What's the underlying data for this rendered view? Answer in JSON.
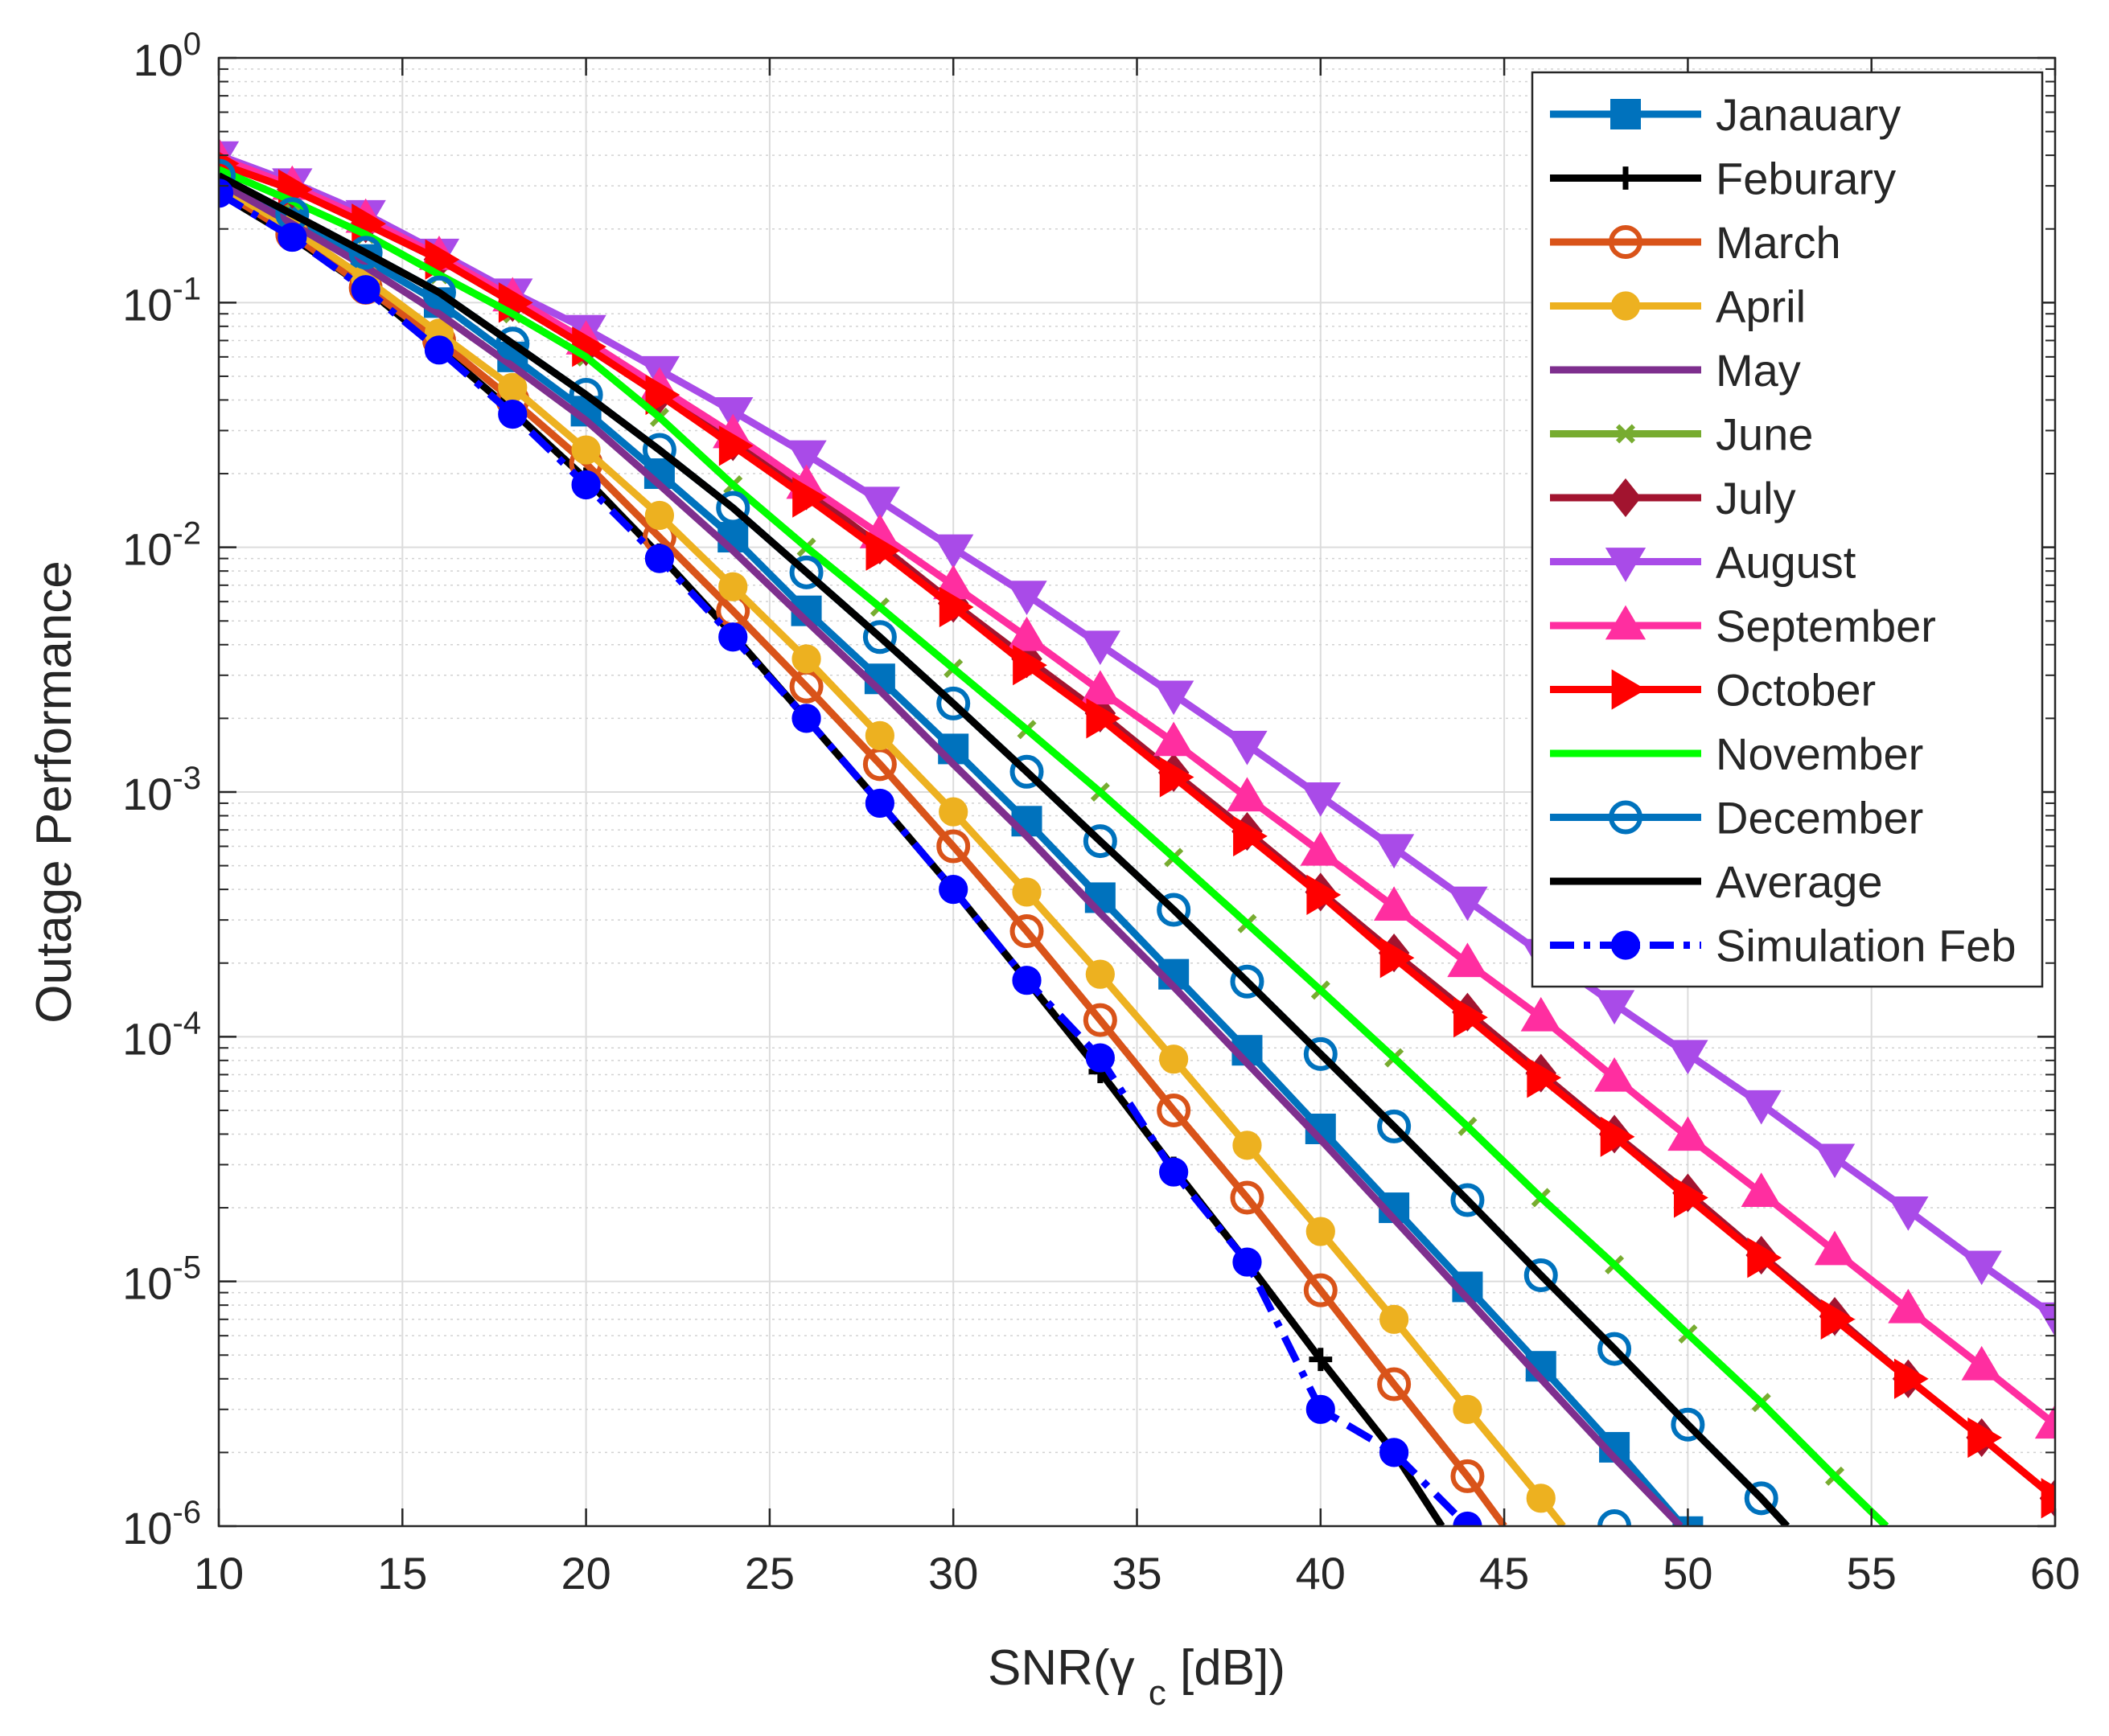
{
  "chart_data": {
    "type": "line",
    "xlabel": "SNR(γ_c [dB])",
    "ylabel": "Outage Performance",
    "xlim": [
      10,
      60
    ],
    "ylim_log10": [
      -6,
      0
    ],
    "yscale": "log",
    "grid": true,
    "minor_grid": true,
    "legend_position": "top-right",
    "x_ticks": [
      10,
      15,
      20,
      25,
      30,
      35,
      40,
      45,
      50,
      55,
      60
    ],
    "y_ticks": [
      {
        "base": "10",
        "exp": "0",
        "value": 1
      },
      {
        "base": "10",
        "exp": "-1",
        "value": 0.1
      },
      {
        "base": "10",
        "exp": "-2",
        "value": 0.01
      },
      {
        "base": "10",
        "exp": "-3",
        "value": 0.001
      },
      {
        "base": "10",
        "exp": "-4",
        "value": 0.0001
      },
      {
        "base": "10",
        "exp": "-5",
        "value": 1e-05
      },
      {
        "base": "10",
        "exp": "-6",
        "value": 1e-06
      }
    ],
    "series": [
      {
        "name": "Janauary",
        "color": "#0072bd",
        "marker": "square",
        "dash": "solid",
        "x": [
          10,
          12,
          14,
          16,
          18,
          20,
          22,
          24,
          26,
          28,
          30,
          32,
          34,
          36,
          38,
          40,
          42,
          44,
          46,
          48,
          50
        ],
        "y": [
          0.33,
          0.22,
          0.15,
          0.1,
          0.06,
          0.036,
          0.02,
          0.011,
          0.0055,
          0.0029,
          0.0015,
          0.00076,
          0.00037,
          0.00018,
          8.8e-05,
          4.2e-05,
          2e-05,
          9.5e-06,
          4.5e-06,
          2.1e-06,
          9.5e-07
        ]
      },
      {
        "name": "Feburary",
        "color": "#000000",
        "marker": "plus",
        "dash": "solid",
        "x": [
          10,
          12,
          14,
          16,
          18,
          20,
          22,
          24,
          26,
          28,
          30,
          32,
          34,
          36,
          38,
          40,
          42,
          43.3
        ],
        "y": [
          0.28,
          0.185,
          0.115,
          0.065,
          0.036,
          0.019,
          0.0093,
          0.0044,
          0.002,
          0.0009,
          0.0004,
          0.00017,
          7.2e-05,
          2.9e-05,
          1.2e-05,
          4.8e-06,
          2e-06,
          1e-06
        ]
      },
      {
        "name": "March",
        "color": "#d95319",
        "marker": "circle",
        "dash": "solid",
        "x": [
          10,
          12,
          14,
          16,
          18,
          20,
          22,
          24,
          26,
          28,
          30,
          32,
          34,
          36,
          38,
          40,
          42,
          44,
          45
        ],
        "y": [
          0.29,
          0.19,
          0.115,
          0.07,
          0.04,
          0.022,
          0.011,
          0.0055,
          0.0027,
          0.0013,
          0.0006,
          0.00027,
          0.000117,
          5e-05,
          2.2e-05,
          9.2e-06,
          3.8e-06,
          1.6e-06,
          1e-06
        ]
      },
      {
        "name": "April",
        "color": "#edb120",
        "marker": "circle-filled",
        "dash": "solid",
        "x": [
          10,
          12,
          14,
          16,
          18,
          20,
          22,
          24,
          26,
          28,
          30,
          32,
          34,
          36,
          38,
          40,
          42,
          44,
          46,
          46.6
        ],
        "y": [
          0.3,
          0.2,
          0.125,
          0.075,
          0.045,
          0.025,
          0.0135,
          0.0069,
          0.0035,
          0.0017,
          0.00083,
          0.00039,
          0.00018,
          8.1e-05,
          3.6e-05,
          1.6e-05,
          7e-06,
          3e-06,
          1.3e-06,
          1e-06
        ]
      },
      {
        "name": "May",
        "color": "#7e2f8e",
        "marker": "none",
        "dash": "solid",
        "x": [
          10,
          12,
          14,
          16,
          18,
          20,
          22,
          24,
          26,
          28,
          30,
          32,
          34,
          36,
          38,
          40,
          42,
          44,
          46,
          48,
          49.8
        ],
        "y": [
          0.31,
          0.21,
          0.14,
          0.09,
          0.055,
          0.033,
          0.018,
          0.0097,
          0.005,
          0.0026,
          0.0013,
          0.00066,
          0.00032,
          0.00016,
          7.8e-05,
          3.8e-05,
          1.8e-05,
          8.5e-06,
          4e-06,
          1.9e-06,
          1e-06
        ]
      },
      {
        "name": "June",
        "color": "#77ac30",
        "marker": "cross",
        "dash": "solid",
        "x": [
          10,
          12,
          14,
          16,
          18,
          20,
          22,
          24,
          26,
          28,
          30,
          32,
          34,
          36,
          38,
          40,
          42,
          44,
          46,
          48,
          50,
          52,
          54,
          55.4
        ],
        "y": [
          0.35,
          0.26,
          0.19,
          0.13,
          0.09,
          0.06,
          0.034,
          0.018,
          0.01,
          0.0057,
          0.0032,
          0.0018,
          0.001,
          0.00054,
          0.00029,
          0.000155,
          8.2e-05,
          4.3e-05,
          2.2e-05,
          1.17e-05,
          6.1e-06,
          3.2e-06,
          1.6e-06,
          1e-06
        ]
      },
      {
        "name": "July",
        "color": "#a2142f",
        "marker": "diamond",
        "dash": "solid",
        "x": [
          10,
          12,
          14,
          16,
          18,
          20,
          22,
          24,
          26,
          28,
          30,
          32,
          34,
          36,
          38,
          40,
          42,
          44,
          46,
          48,
          50,
          52,
          54,
          56,
          58,
          60
        ],
        "y": [
          0.37,
          0.29,
          0.21,
          0.15,
          0.1,
          0.066,
          0.042,
          0.027,
          0.017,
          0.0102,
          0.0059,
          0.0035,
          0.0021,
          0.0012,
          0.00069,
          0.00039,
          0.00022,
          0.000126,
          7.1e-05,
          4e-05,
          2.3e-05,
          1.28e-05,
          7.2e-06,
          4e-06,
          2.3e-06,
          1.3e-06
        ]
      },
      {
        "name": "August",
        "color": "#a94be8",
        "marker": "triangle-down",
        "dash": "solid",
        "x": [
          10,
          12,
          14,
          16,
          18,
          20,
          22,
          24,
          26,
          28,
          30,
          32,
          34,
          36,
          38,
          40,
          42,
          44,
          46,
          48,
          50,
          52,
          54,
          56,
          58,
          60
        ],
        "y": [
          0.4,
          0.31,
          0.23,
          0.16,
          0.11,
          0.078,
          0.053,
          0.036,
          0.024,
          0.0155,
          0.0099,
          0.0064,
          0.004,
          0.0025,
          0.00156,
          0.00096,
          0.00059,
          0.00036,
          0.00022,
          0.000136,
          8.5e-05,
          5.3e-05,
          3.2e-05,
          1.95e-05,
          1.17e-05,
          7.2e-06
        ]
      },
      {
        "name": "September",
        "color": "#ff2ea0",
        "marker": "triangle-up",
        "dash": "solid",
        "x": [
          10,
          12,
          14,
          16,
          18,
          20,
          22,
          24,
          26,
          28,
          30,
          32,
          34,
          36,
          38,
          40,
          42,
          44,
          46,
          48,
          50,
          52,
          54,
          56,
          58,
          60
        ],
        "y": [
          0.39,
          0.3,
          0.22,
          0.155,
          0.105,
          0.07,
          0.045,
          0.029,
          0.018,
          0.0113,
          0.007,
          0.0043,
          0.0026,
          0.0016,
          0.00095,
          0.00057,
          0.00034,
          0.0002,
          0.00012,
          6.8e-05,
          3.9e-05,
          2.3e-05,
          1.33e-05,
          7.7e-06,
          4.5e-06,
          2.6e-06
        ]
      },
      {
        "name": "October",
        "color": "#ff0000",
        "marker": "triangle-right",
        "dash": "solid",
        "x": [
          10,
          12,
          14,
          16,
          18,
          20,
          22,
          24,
          26,
          28,
          30,
          32,
          34,
          36,
          38,
          40,
          42,
          44,
          46,
          48,
          50,
          52,
          54,
          56,
          58,
          60
        ],
        "y": [
          0.37,
          0.29,
          0.21,
          0.15,
          0.1,
          0.066,
          0.042,
          0.026,
          0.016,
          0.0097,
          0.0057,
          0.0033,
          0.002,
          0.00115,
          0.00066,
          0.00038,
          0.00021,
          0.00012,
          6.8e-05,
          3.9e-05,
          2.2e-05,
          1.25e-05,
          7e-06,
          4e-06,
          2.3e-06,
          1.3e-06
        ]
      },
      {
        "name": "November",
        "color": "#00ff00",
        "marker": "none",
        "dash": "solid",
        "x": [
          10,
          12,
          14,
          16,
          18,
          20,
          22,
          24,
          26,
          28,
          30,
          32,
          34,
          36,
          38,
          40,
          42,
          44,
          46,
          48,
          50,
          52,
          54,
          55.4
        ],
        "y": [
          0.35,
          0.26,
          0.19,
          0.13,
          0.09,
          0.06,
          0.034,
          0.018,
          0.01,
          0.0057,
          0.0032,
          0.0018,
          0.001,
          0.00054,
          0.00029,
          0.000155,
          8.2e-05,
          4.3e-05,
          2.2e-05,
          1.17e-05,
          6.1e-06,
          3.2e-06,
          1.6e-06,
          1e-06
        ]
      },
      {
        "name": "December",
        "color": "#0072bd",
        "marker": "circle",
        "dash": "solid",
        "x": [
          10,
          12,
          14,
          16,
          18,
          20,
          22,
          24,
          26,
          28,
          30,
          32,
          34,
          36,
          38,
          40,
          42,
          44,
          46,
          48,
          50,
          52,
          52.7
        ],
        "y": [
          0.33,
          0.23,
          0.16,
          0.11,
          0.068,
          0.042,
          0.025,
          0.0145,
          0.0079,
          0.0043,
          0.0023,
          0.00121,
          0.00063,
          0.00033,
          0.000168,
          8.5e-05,
          4.3e-05,
          2.15e-05,
          1.06e-05,
          5.3e-06,
          2.6e-06,
          1.3e-06,
          1e-06
        ]
      },
      {
        "name": "Average",
        "color": "#000000",
        "marker": "none",
        "dash": "solid",
        "x": [
          10,
          12,
          14,
          16,
          18,
          20,
          22,
          24,
          26,
          28,
          30,
          32,
          34,
          36,
          38,
          40,
          42,
          44,
          46,
          48,
          50,
          52,
          52.7
        ],
        "y": [
          0.33,
          0.23,
          0.16,
          0.11,
          0.068,
          0.042,
          0.025,
          0.0145,
          0.0079,
          0.0043,
          0.0023,
          0.00121,
          0.00063,
          0.00033,
          0.000168,
          8.5e-05,
          4.3e-05,
          2.15e-05,
          1.06e-05,
          5.3e-06,
          2.6e-06,
          1.3e-06,
          1e-06
        ]
      },
      {
        "name": "Simulation Feb",
        "color": "#0000ff",
        "marker": "circle-filled",
        "dash": "dashdot",
        "x": [
          10,
          12,
          14,
          16,
          18,
          20,
          22,
          24,
          26,
          28,
          30,
          32,
          34,
          36,
          38,
          40,
          42,
          44
        ],
        "y": [
          0.28,
          0.185,
          0.113,
          0.064,
          0.035,
          0.018,
          0.009,
          0.0043,
          0.002,
          0.0009,
          0.0004,
          0.00017,
          8.2e-05,
          2.8e-05,
          1.2e-05,
          3e-06,
          2e-06,
          1e-06
        ]
      }
    ],
    "extra_points": [
      {
        "series": "December",
        "x": 48,
        "y": 1e-06
      }
    ]
  }
}
